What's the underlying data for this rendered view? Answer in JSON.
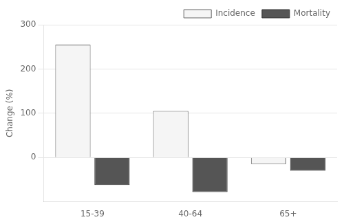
{
  "chart_data": {
    "type": "bar",
    "categories": [
      "15-39",
      "40-64",
      "65+"
    ],
    "series": [
      {
        "name": "Incidence",
        "color": "#f5f5f5",
        "values": [
          255,
          105,
          -15
        ]
      },
      {
        "name": "Mortality",
        "color": "#555555",
        "values": [
          -62,
          -78,
          -30
        ]
      }
    ],
    "ylabel": "Change (%)",
    "ylim": [
      -100,
      300
    ],
    "yticks": [
      0,
      100,
      200,
      300
    ],
    "grid": true,
    "legend": "upper right"
  }
}
